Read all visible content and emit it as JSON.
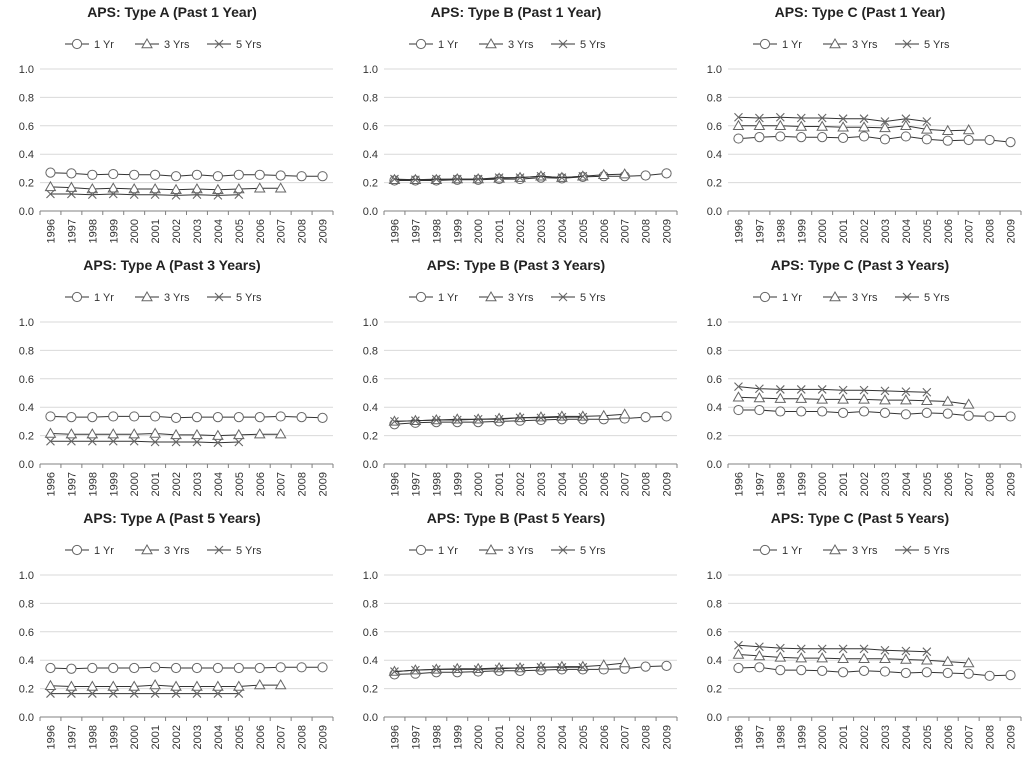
{
  "chart_data": [
    {
      "type": "line",
      "title": "APS: Type A (Past 1 Year)",
      "categories": [
        "1996",
        "1997",
        "1998",
        "1999",
        "2000",
        "2001",
        "2002",
        "2003",
        "2004",
        "2005",
        "2006",
        "2007",
        "2008",
        "2009"
      ],
      "ylim": [
        0,
        1.0
      ],
      "yticks": [
        "0.0",
        "0.2",
        "0.4",
        "0.6",
        "0.8",
        "1.0"
      ],
      "legend": "top",
      "grid": true,
      "series": [
        {
          "name": "1 Yr",
          "marker": "circle",
          "values": [
            0.27,
            0.265,
            0.255,
            0.26,
            0.255,
            0.255,
            0.245,
            0.255,
            0.245,
            0.255,
            0.255,
            0.25,
            0.245,
            0.245
          ]
        },
        {
          "name": "3 Yrs",
          "marker": "triangle",
          "values": [
            0.17,
            0.165,
            0.155,
            0.16,
            0.155,
            0.155,
            0.15,
            0.155,
            0.15,
            0.155,
            0.16,
            0.16,
            null,
            null
          ]
        },
        {
          "name": "5 Yrs",
          "marker": "x",
          "values": [
            0.12,
            0.12,
            0.115,
            0.12,
            0.115,
            0.115,
            0.11,
            0.115,
            0.11,
            0.115,
            null,
            null,
            null,
            null
          ]
        }
      ]
    },
    {
      "type": "line",
      "title": "APS: Type B (Past 1 Year)",
      "categories": [
        "1996",
        "1997",
        "1998",
        "1999",
        "2000",
        "2001",
        "2002",
        "2003",
        "2004",
        "2005",
        "2006",
        "2007",
        "2008",
        "2009"
      ],
      "ylim": [
        0,
        1.0
      ],
      "yticks": [
        "0.0",
        "0.2",
        "0.4",
        "0.6",
        "0.8",
        "1.0"
      ],
      "legend": "top",
      "grid": true,
      "series": [
        {
          "name": "1 Yr",
          "marker": "circle",
          "values": [
            0.215,
            0.215,
            0.215,
            0.22,
            0.22,
            0.225,
            0.225,
            0.235,
            0.23,
            0.24,
            0.245,
            0.245,
            0.25,
            0.265
          ]
        },
        {
          "name": "3 Yrs",
          "marker": "triangle",
          "values": [
            0.22,
            0.22,
            0.22,
            0.225,
            0.225,
            0.23,
            0.235,
            0.245,
            0.235,
            0.245,
            0.255,
            0.26,
            null,
            null
          ]
        },
        {
          "name": "5 Yrs",
          "marker": "x",
          "values": [
            0.225,
            0.22,
            0.225,
            0.225,
            0.225,
            0.235,
            0.235,
            0.245,
            0.235,
            0.245,
            null,
            null,
            null,
            null
          ]
        }
      ]
    },
    {
      "type": "line",
      "title": "APS: Type C (Past 1 Year)",
      "categories": [
        "1996",
        "1997",
        "1998",
        "1999",
        "2000",
        "2001",
        "2002",
        "2003",
        "2004",
        "2005",
        "2006",
        "2007",
        "2008",
        "2009"
      ],
      "ylim": [
        0,
        1.0
      ],
      "yticks": [
        "0.0",
        "0.2",
        "0.4",
        "0.6",
        "0.8",
        "1.0"
      ],
      "legend": "top",
      "grid": true,
      "series": [
        {
          "name": "1 Yr",
          "marker": "circle",
          "values": [
            0.51,
            0.52,
            0.525,
            0.52,
            0.52,
            0.515,
            0.525,
            0.505,
            0.525,
            0.505,
            0.495,
            0.5,
            0.5,
            0.485
          ]
        },
        {
          "name": "3 Yrs",
          "marker": "triangle",
          "values": [
            0.6,
            0.6,
            0.6,
            0.595,
            0.595,
            0.59,
            0.59,
            0.585,
            0.6,
            0.575,
            0.565,
            0.57,
            null,
            null
          ]
        },
        {
          "name": "5 Yrs",
          "marker": "x",
          "values": [
            0.66,
            0.655,
            0.66,
            0.655,
            0.655,
            0.65,
            0.65,
            0.63,
            0.65,
            0.63,
            null,
            null,
            null,
            null
          ]
        }
      ]
    },
    {
      "type": "line",
      "title": "APS: Type A (Past 3 Years)",
      "categories": [
        "1996",
        "1997",
        "1998",
        "1999",
        "2000",
        "2001",
        "2002",
        "2003",
        "2004",
        "2005",
        "2006",
        "2007",
        "2008",
        "2009"
      ],
      "ylim": [
        0,
        1.0
      ],
      "yticks": [
        "0.0",
        "0.2",
        "0.4",
        "0.6",
        "0.8",
        "1.0"
      ],
      "legend": "top",
      "grid": true,
      "series": [
        {
          "name": "1 Yr",
          "marker": "circle",
          "values": [
            0.335,
            0.33,
            0.33,
            0.335,
            0.335,
            0.335,
            0.325,
            0.33,
            0.33,
            0.33,
            0.33,
            0.335,
            0.33,
            0.325
          ]
        },
        {
          "name": "3 Yrs",
          "marker": "triangle",
          "values": [
            0.215,
            0.21,
            0.21,
            0.21,
            0.21,
            0.215,
            0.205,
            0.205,
            0.2,
            0.205,
            0.21,
            0.21,
            null,
            null
          ]
        },
        {
          "name": "5 Yrs",
          "marker": "x",
          "values": [
            0.16,
            0.16,
            0.16,
            0.16,
            0.16,
            0.155,
            0.155,
            0.155,
            0.15,
            0.155,
            null,
            null,
            null,
            null
          ]
        }
      ]
    },
    {
      "type": "line",
      "title": "APS: Type B (Past 3 Years)",
      "categories": [
        "1996",
        "1997",
        "1998",
        "1999",
        "2000",
        "2001",
        "2002",
        "2003",
        "2004",
        "2005",
        "2006",
        "2007",
        "2008",
        "2009"
      ],
      "ylim": [
        0,
        1.0
      ],
      "yticks": [
        "0.0",
        "0.2",
        "0.4",
        "0.6",
        "0.8",
        "1.0"
      ],
      "legend": "top",
      "grid": true,
      "series": [
        {
          "name": "1 Yr",
          "marker": "circle",
          "values": [
            0.28,
            0.29,
            0.295,
            0.295,
            0.295,
            0.3,
            0.305,
            0.31,
            0.315,
            0.315,
            0.315,
            0.32,
            0.33,
            0.335
          ]
        },
        {
          "name": "3 Yrs",
          "marker": "triangle",
          "values": [
            0.3,
            0.305,
            0.31,
            0.315,
            0.315,
            0.32,
            0.325,
            0.33,
            0.335,
            0.335,
            0.34,
            0.35,
            null,
            null
          ]
        },
        {
          "name": "5 Yrs",
          "marker": "x",
          "values": [
            0.3,
            0.305,
            0.31,
            0.31,
            0.315,
            0.315,
            0.325,
            0.325,
            0.33,
            0.33,
            null,
            null,
            null,
            null
          ]
        }
      ]
    },
    {
      "type": "line",
      "title": "APS: Type C (Past 3 Years)",
      "categories": [
        "1996",
        "1997",
        "1998",
        "1999",
        "2000",
        "2001",
        "2002",
        "2003",
        "2004",
        "2005",
        "2006",
        "2007",
        "2008",
        "2009"
      ],
      "ylim": [
        0,
        1.0
      ],
      "yticks": [
        "0.0",
        "0.2",
        "0.4",
        "0.6",
        "0.8",
        "1.0"
      ],
      "legend": "top",
      "grid": true,
      "series": [
        {
          "name": "1 Yr",
          "marker": "circle",
          "values": [
            0.38,
            0.38,
            0.37,
            0.37,
            0.37,
            0.36,
            0.37,
            0.36,
            0.35,
            0.36,
            0.355,
            0.34,
            0.335,
            0.335
          ]
        },
        {
          "name": "3 Yrs",
          "marker": "triangle",
          "values": [
            0.47,
            0.465,
            0.46,
            0.46,
            0.455,
            0.455,
            0.455,
            0.45,
            0.45,
            0.445,
            0.44,
            0.42,
            null,
            null
          ]
        },
        {
          "name": "5 Yrs",
          "marker": "x",
          "values": [
            0.545,
            0.53,
            0.525,
            0.525,
            0.525,
            0.52,
            0.52,
            0.515,
            0.51,
            0.505,
            null,
            null,
            null,
            null
          ]
        }
      ]
    },
    {
      "type": "line",
      "title": "APS: Type A (Past 5 Years)",
      "categories": [
        "1996",
        "1997",
        "1998",
        "1999",
        "2000",
        "2001",
        "2002",
        "2003",
        "2004",
        "2005",
        "2006",
        "2007",
        "2008",
        "2009"
      ],
      "ylim": [
        0,
        1.0
      ],
      "yticks": [
        "0.0",
        "0.2",
        "0.4",
        "0.6",
        "0.8",
        "1.0"
      ],
      "legend": "top",
      "grid": true,
      "series": [
        {
          "name": "1 Yr",
          "marker": "circle",
          "values": [
            0.345,
            0.34,
            0.345,
            0.345,
            0.345,
            0.35,
            0.345,
            0.345,
            0.345,
            0.345,
            0.345,
            0.35,
            0.35,
            0.35
          ]
        },
        {
          "name": "3 Yrs",
          "marker": "triangle",
          "values": [
            0.22,
            0.215,
            0.215,
            0.215,
            0.215,
            0.225,
            0.215,
            0.215,
            0.215,
            0.215,
            0.225,
            0.225,
            null,
            null
          ]
        },
        {
          "name": "5 Yrs",
          "marker": "x",
          "values": [
            0.165,
            0.165,
            0.165,
            0.165,
            0.165,
            0.165,
            0.165,
            0.165,
            0.165,
            0.165,
            null,
            null,
            null,
            null
          ]
        }
      ]
    },
    {
      "type": "line",
      "title": "APS: Type B (Past 5 Years)",
      "categories": [
        "1996",
        "1997",
        "1998",
        "1999",
        "2000",
        "2001",
        "2002",
        "2003",
        "2004",
        "2005",
        "2006",
        "2007",
        "2008",
        "2009"
      ],
      "ylim": [
        0,
        1.0
      ],
      "yticks": [
        "0.0",
        "0.2",
        "0.4",
        "0.6",
        "0.8",
        "1.0"
      ],
      "legend": "top",
      "grid": true,
      "series": [
        {
          "name": "1 Yr",
          "marker": "circle",
          "values": [
            0.3,
            0.305,
            0.315,
            0.315,
            0.32,
            0.325,
            0.325,
            0.33,
            0.335,
            0.335,
            0.335,
            0.34,
            0.355,
            0.36
          ]
        },
        {
          "name": "3 Yrs",
          "marker": "triangle",
          "values": [
            0.32,
            0.33,
            0.335,
            0.34,
            0.34,
            0.345,
            0.345,
            0.35,
            0.355,
            0.355,
            0.365,
            0.38,
            null,
            null
          ]
        },
        {
          "name": "5 Yrs",
          "marker": "x",
          "values": [
            0.32,
            0.33,
            0.335,
            0.335,
            0.335,
            0.34,
            0.345,
            0.35,
            0.35,
            0.35,
            null,
            null,
            null,
            null
          ]
        }
      ]
    },
    {
      "type": "line",
      "title": "APS: Type C (Past 5 Years)",
      "categories": [
        "1996",
        "1997",
        "1998",
        "1999",
        "2000",
        "2001",
        "2002",
        "2003",
        "2004",
        "2005",
        "2006",
        "2007",
        "2008",
        "2009"
      ],
      "ylim": [
        0,
        1.0
      ],
      "yticks": [
        "0.0",
        "0.2",
        "0.4",
        "0.6",
        "0.8",
        "1.0"
      ],
      "legend": "top",
      "grid": true,
      "series": [
        {
          "name": "1 Yr",
          "marker": "circle",
          "values": [
            0.345,
            0.35,
            0.33,
            0.33,
            0.325,
            0.315,
            0.325,
            0.32,
            0.31,
            0.315,
            0.31,
            0.305,
            0.29,
            0.295
          ]
        },
        {
          "name": "3 Yrs",
          "marker": "triangle",
          "values": [
            0.44,
            0.43,
            0.42,
            0.415,
            0.415,
            0.41,
            0.41,
            0.41,
            0.405,
            0.4,
            0.39,
            0.38,
            null,
            null
          ]
        },
        {
          "name": "5 Yrs",
          "marker": "x",
          "values": [
            0.505,
            0.495,
            0.485,
            0.48,
            0.48,
            0.48,
            0.48,
            0.47,
            0.465,
            0.46,
            null,
            null,
            null,
            null
          ]
        }
      ]
    }
  ],
  "colors": {
    "line": "#333333",
    "marker_stroke": "#666666",
    "gridline": "#d9d9d9",
    "axis": "#808080",
    "text": "#333333"
  }
}
